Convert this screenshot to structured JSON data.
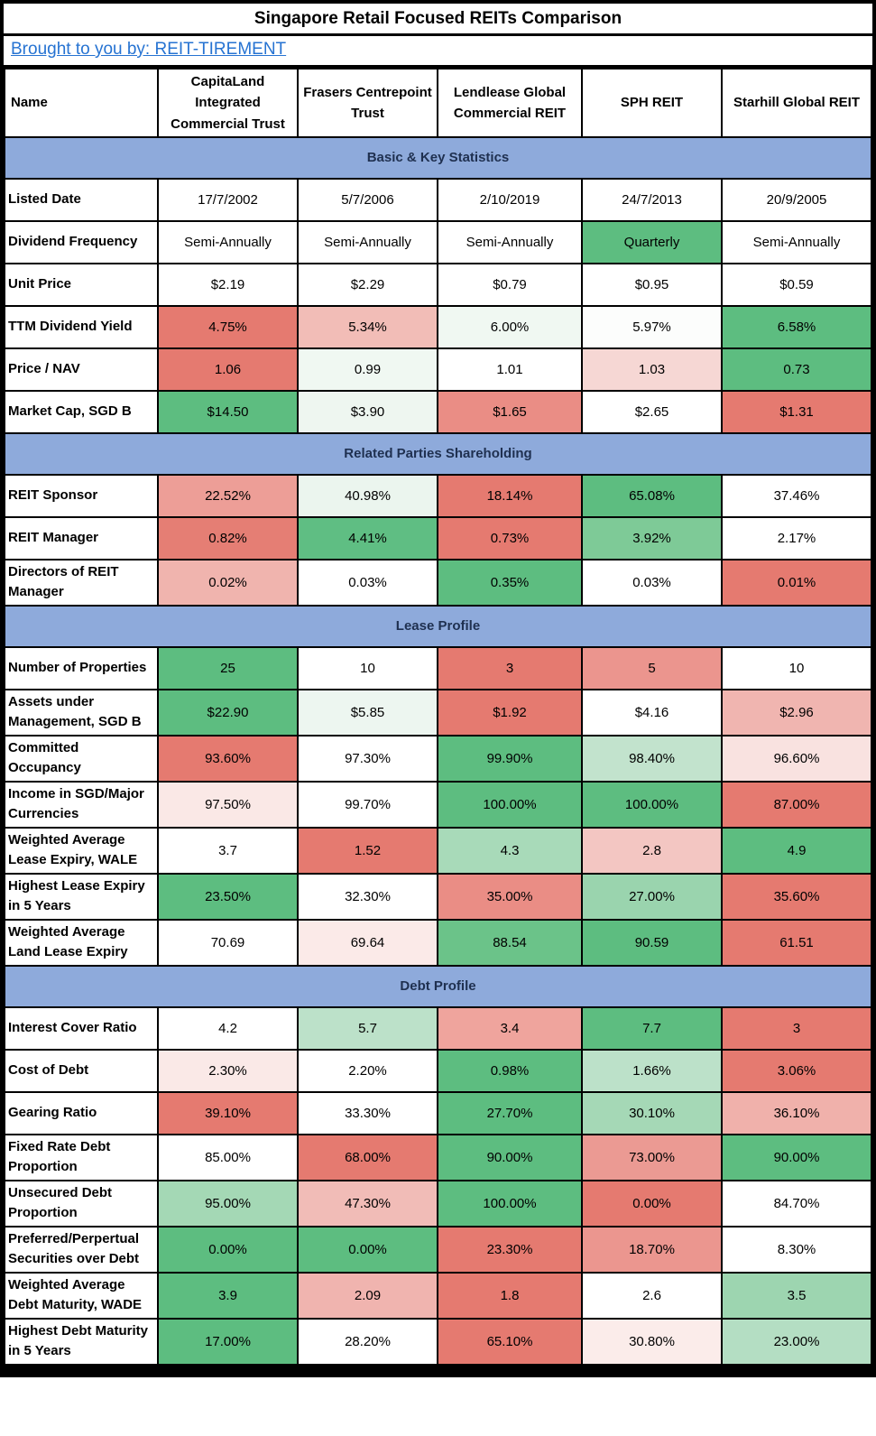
{
  "title": "Singapore Retail Focused REITs Comparison",
  "byline": {
    "label": "Brought to you by: REIT-TIREMENT"
  },
  "colors": {
    "banner_bg": "#8EAADB",
    "banner_text": "#1F3050",
    "link_blue": "#2673D2",
    "border": "#000000",
    "scale_min_red": "#E57A70",
    "scale_mid_white": "#FFFFFF",
    "scale_max_green": "#5DBD80"
  },
  "chart_data": {
    "type": "table",
    "title": "Singapore Retail Focused REITs Comparison",
    "columns": [
      "Name",
      "CapitaLand Integrated Commercial Trust",
      "Frasers Centrepoint Trust",
      "Lendlease Global Commercial REIT",
      "SPH REIT",
      "Starhill Global REIT"
    ],
    "sections": [
      {
        "label": "Basic & Key Statistics",
        "rows": [
          {
            "label": "Listed Date",
            "values": [
              "17/7/2002",
              "5/7/2006",
              "2/10/2019",
              "24/7/2013",
              "20/9/2005"
            ],
            "colors": [
              "#FFFFFF",
              "#FFFFFF",
              "#FFFFFF",
              "#FFFFFF",
              "#FFFFFF"
            ]
          },
          {
            "label": "Dividend Frequency",
            "values": [
              "Semi-Annually",
              "Semi-Annually",
              "Semi-Annually",
              "Quarterly",
              "Semi-Annually"
            ],
            "colors": [
              "#FFFFFF",
              "#FFFFFF",
              "#FFFFFF",
              "#5DBD80",
              "#FFFFFF"
            ]
          },
          {
            "label": "Unit Price",
            "values": [
              "$2.19",
              "$2.29",
              "$0.79",
              "$0.95",
              "$0.59"
            ],
            "colors": [
              "#FFFFFF",
              "#FFFFFF",
              "#FFFFFF",
              "#FFFFFF",
              "#FFFFFF"
            ]
          },
          {
            "label": "TTM Dividend Yield",
            "values": [
              "4.75%",
              "5.34%",
              "6.00%",
              "5.97%",
              "6.58%"
            ],
            "colors": [
              "#E57A70",
              "#F2BDB7",
              "#F0F8F2",
              "#FCFDFC",
              "#5DBD80"
            ]
          },
          {
            "label": "Price / NAV",
            "values": [
              "1.06",
              "0.99",
              "1.01",
              "1.03",
              "0.73"
            ],
            "colors": [
              "#E57A70",
              "#F0F8F2",
              "#FFFFFF",
              "#F6D7D4",
              "#5DBD80"
            ]
          },
          {
            "label": "Market Cap, SGD B",
            "values": [
              "$14.50",
              "$3.90",
              "$1.65",
              "$2.65",
              "$1.31"
            ],
            "colors": [
              "#5DBD80",
              "#EEF6F0",
              "#EA8D85",
              "#FFFFFF",
              "#E57A70"
            ]
          }
        ]
      },
      {
        "label": "Related Parties Shareholding",
        "rows": [
          {
            "label": "REIT Sponsor",
            "values": [
              "22.52%",
              "40.98%",
              "18.14%",
              "65.08%",
              "37.46%"
            ],
            "colors": [
              "#ED9E97",
              "#EBF5EE",
              "#E57A70",
              "#5DBD80",
              "#FFFFFF"
            ]
          },
          {
            "label": "REIT Manager",
            "values": [
              "0.82%",
              "4.41%",
              "0.73%",
              "3.92%",
              "2.17%"
            ],
            "colors": [
              "#E57E74",
              "#5FBE83",
              "#E57A70",
              "#7ECA97",
              "#FFFFFF"
            ]
          },
          {
            "label": "Directors of REIT Manager",
            "values": [
              "0.02%",
              "0.03%",
              "0.35%",
              "0.03%",
              "0.01%"
            ],
            "colors": [
              "#F0B4AE",
              "#FFFFFF",
              "#5DBD80",
              "#FFFFFF",
              "#E57A70"
            ]
          }
        ]
      },
      {
        "label": "Lease Profile",
        "rows": [
          {
            "label": "Number of Properties",
            "values": [
              "25",
              "10",
              "3",
              "5",
              "10"
            ],
            "colors": [
              "#5DBD80",
              "#FFFFFF",
              "#E57A70",
              "#EB958E",
              "#FFFFFF"
            ]
          },
          {
            "label": "Assets under Management, SGD B",
            "values": [
              "$22.90",
              "$5.85",
              "$1.92",
              "$4.16",
              "$2.96"
            ],
            "colors": [
              "#5DBD80",
              "#EDF6F0",
              "#E57A70",
              "#FFFFFF",
              "#F0B5B0"
            ]
          },
          {
            "label": "Committed Occupancy",
            "values": [
              "93.60%",
              "97.30%",
              "99.90%",
              "98.40%",
              "96.60%"
            ],
            "colors": [
              "#E57A70",
              "#FFFFFF",
              "#5DBD80",
              "#C2E3CD",
              "#F9E2E0"
            ]
          },
          {
            "label": "Income in SGD/Major Currencies",
            "values": [
              "97.50%",
              "99.70%",
              "100.00%",
              "100.00%",
              "87.00%"
            ],
            "colors": [
              "#FAE8E6",
              "#FFFFFF",
              "#5DBD80",
              "#5DBD80",
              "#E57A70"
            ]
          },
          {
            "label": "Weighted Average Lease Expiry, WALE",
            "values": [
              "3.7",
              "1.52",
              "4.3",
              "2.8",
              "4.9"
            ],
            "colors": [
              "#FFFFFF",
              "#E57A70",
              "#A8DAB9",
              "#F3C6C2",
              "#5DBD80"
            ]
          },
          {
            "label": "Highest Lease Expiry in 5 Years",
            "values": [
              "23.50%",
              "32.30%",
              "35.00%",
              "27.00%",
              "35.60%"
            ],
            "colors": [
              "#5DBD80",
              "#FFFFFF",
              "#EA8D85",
              "#9AD4AE",
              "#E57A70"
            ]
          },
          {
            "label": "Weighted Average Land Lease Expiry",
            "values": [
              "70.69",
              "69.64",
              "88.54",
              "90.59",
              "61.51"
            ],
            "colors": [
              "#FFFFFF",
              "#FBEAE8",
              "#6BC389",
              "#5DBD80",
              "#E57A70"
            ]
          }
        ]
      },
      {
        "label": "Debt Profile",
        "rows": [
          {
            "label": "Interest Cover Ratio",
            "values": [
              "4.2",
              "5.7",
              "3.4",
              "7.7",
              "3"
            ],
            "colors": [
              "#FFFFFF",
              "#BCE1C9",
              "#EFA49D",
              "#5DBD80",
              "#E57A70"
            ]
          },
          {
            "label": "Cost of Debt",
            "values": [
              "2.30%",
              "2.20%",
              "0.98%",
              "1.66%",
              "3.06%"
            ],
            "colors": [
              "#FAE9E7",
              "#FFFFFF",
              "#5DBD80",
              "#BCE1C9",
              "#E57A70"
            ]
          },
          {
            "label": "Gearing Ratio",
            "values": [
              "39.10%",
              "33.30%",
              "27.70%",
              "30.10%",
              "36.10%"
            ],
            "colors": [
              "#E57A70",
              "#FFFFFF",
              "#5DBD80",
              "#A5D8B6",
              "#F0B1AB"
            ]
          },
          {
            "label": "Fixed Rate Debt Proportion",
            "values": [
              "85.00%",
              "68.00%",
              "90.00%",
              "73.00%",
              "90.00%"
            ],
            "colors": [
              "#FFFFFF",
              "#E57A70",
              "#5DBD80",
              "#EB9A93",
              "#5DBD80"
            ]
          },
          {
            "label": "Unsecured Debt Proportion",
            "values": [
              "95.00%",
              "47.30%",
              "100.00%",
              "0.00%",
              "84.70%"
            ],
            "colors": [
              "#A4D8B5",
              "#F1BCB7",
              "#5DBD80",
              "#E57A70",
              "#FFFFFF"
            ]
          },
          {
            "label": "Preferred/Perpertual Securities over Debt",
            "values": [
              "0.00%",
              "0.00%",
              "23.30%",
              "18.70%",
              "8.30%"
            ],
            "colors": [
              "#5DBD80",
              "#5DBD80",
              "#E57A70",
              "#EB968F",
              "#FFFFFF"
            ]
          },
          {
            "label": "Weighted Average Debt Maturity, WADE",
            "values": [
              "3.9",
              "2.09",
              "1.8",
              "2.6",
              "3.5"
            ],
            "colors": [
              "#5DBD80",
              "#F0B4AF",
              "#E57A70",
              "#FFFFFF",
              "#9DD5B0"
            ]
          },
          {
            "label": "Highest Debt Maturity in 5 Years",
            "values": [
              "17.00%",
              "28.20%",
              "65.10%",
              "30.80%",
              "23.00%"
            ],
            "colors": [
              "#5DBD80",
              "#FFFFFF",
              "#E57A70",
              "#FBECEA",
              "#B4DEC3"
            ]
          }
        ]
      }
    ]
  }
}
